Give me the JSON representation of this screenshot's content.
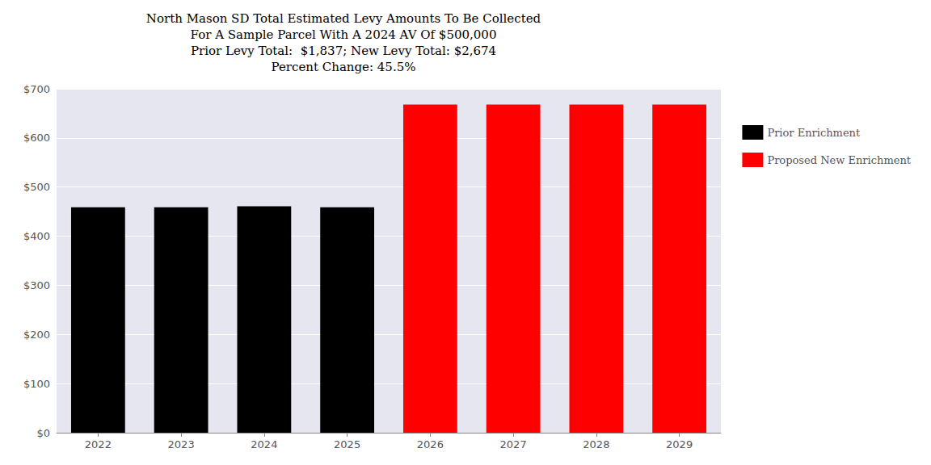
{
  "chart_data": {
    "type": "bar",
    "title": "North Mason SD Total Estimated Levy Amounts To Be Collected\nFor A Sample Parcel With A 2024 AV Of $500,000\nPrior Levy Total:  $1,837; New Levy Total: $2,674\nPercent Change: 45.5%",
    "categories": [
      "2022",
      "2023",
      "2024",
      "2025",
      "2026",
      "2027",
      "2028",
      "2029"
    ],
    "series": [
      {
        "name": "Prior Enrichment",
        "color": "#000000",
        "values": [
          459,
          459,
          461,
          459,
          null,
          null,
          null,
          null
        ]
      },
      {
        "name": "Proposed New Enrichment",
        "color": "#ff0000",
        "values": [
          null,
          null,
          null,
          null,
          668,
          668,
          668,
          668
        ]
      }
    ],
    "ylim": [
      0,
      700
    ],
    "yticks": [
      {
        "value": 0,
        "label": "$0"
      },
      {
        "value": 100,
        "label": "$100"
      },
      {
        "value": 200,
        "label": "$200"
      },
      {
        "value": 300,
        "label": "$300"
      },
      {
        "value": 400,
        "label": "$400"
      },
      {
        "value": 500,
        "label": "$500"
      },
      {
        "value": 600,
        "label": "$600"
      },
      {
        "value": 700,
        "label": "$700"
      }
    ],
    "grid": true,
    "legend": "right"
  }
}
